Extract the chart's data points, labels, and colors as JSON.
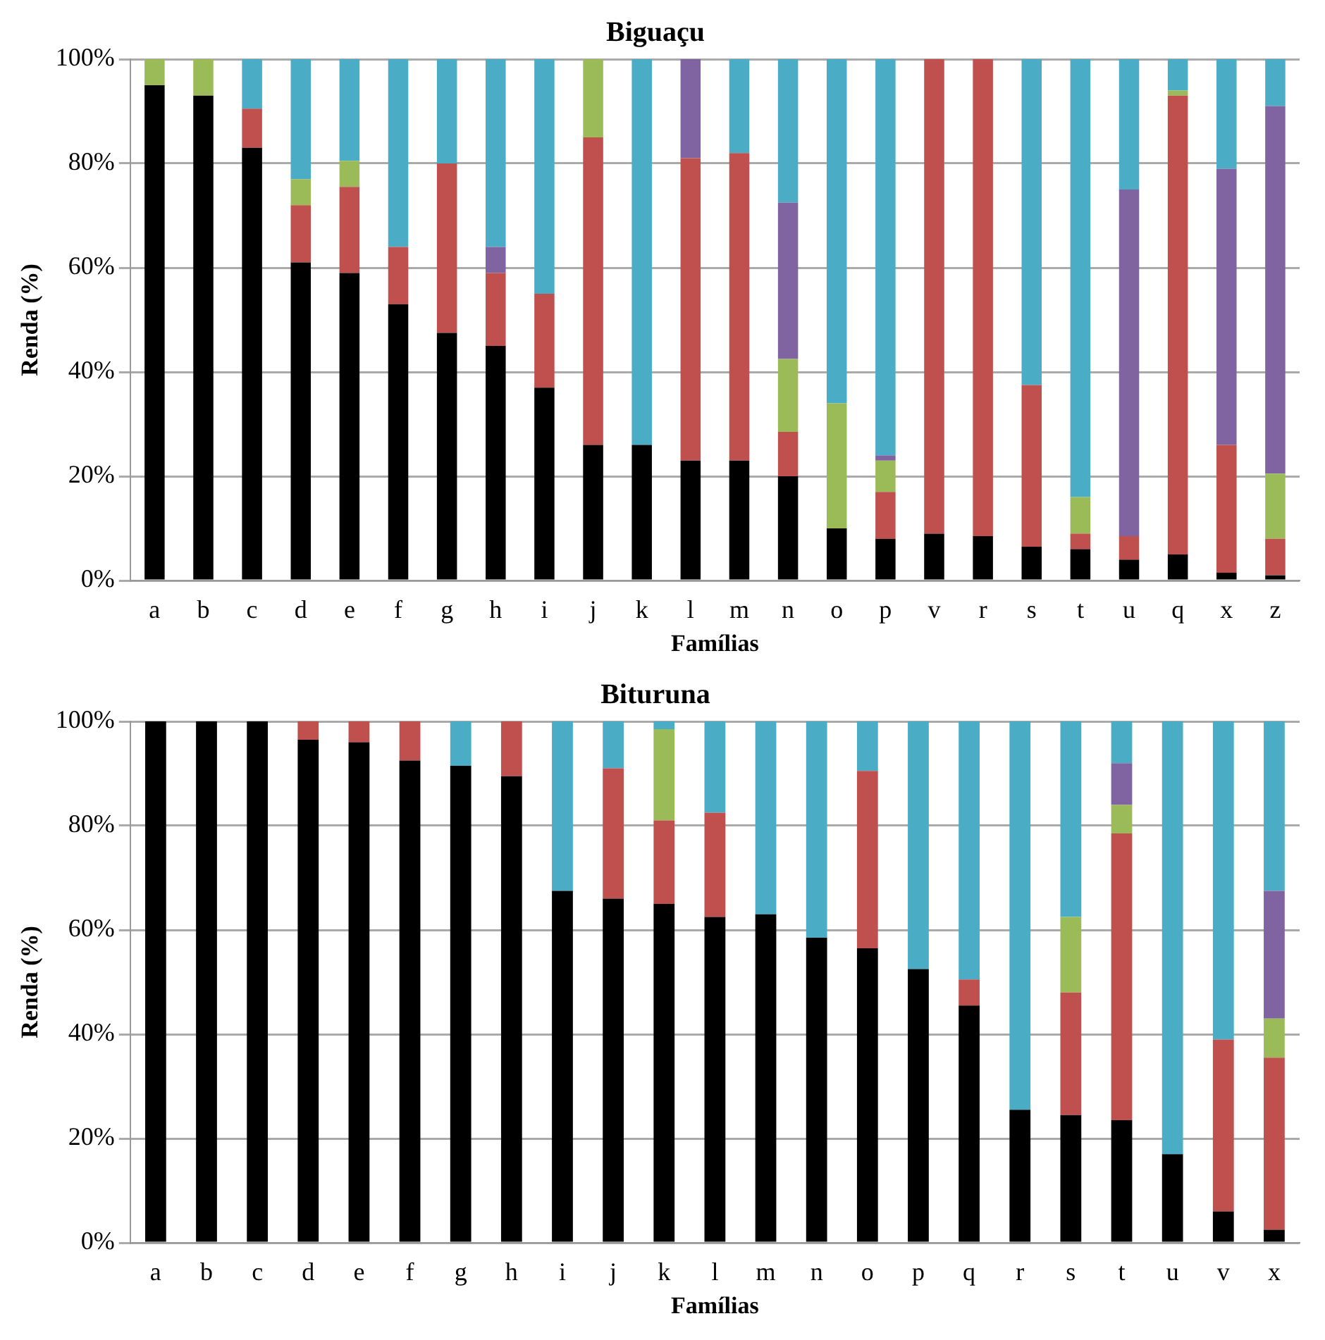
{
  "chart_data": [
    {
      "type": "bar",
      "title": "Biguaçu",
      "xlabel": "Famílias",
      "ylabel": "Renda (%)",
      "stacked": true,
      "grid": "y",
      "legend": false,
      "categories": [
        "a",
        "b",
        "c",
        "d",
        "e",
        "f",
        "g",
        "h",
        "i",
        "j",
        "k",
        "l",
        "m",
        "n",
        "o",
        "p",
        "v",
        "r",
        "s",
        "t",
        "u",
        "q",
        "x",
        "z"
      ],
      "ylim": [
        0,
        100
      ],
      "yticks": [
        {
          "value": 0,
          "label": "0%"
        },
        {
          "value": 20,
          "label": "20%"
        },
        {
          "value": 40,
          "label": "40%"
        },
        {
          "value": 60,
          "label": "60%"
        },
        {
          "value": 80,
          "label": "80%"
        },
        {
          "value": 100,
          "label": "100%"
        }
      ],
      "series": [
        {
          "color": "#000000",
          "values": [
            95,
            93,
            83,
            61,
            59,
            53,
            47.5,
            45,
            37,
            26,
            26,
            23,
            23,
            20,
            10,
            8,
            9,
            8.5,
            6.5,
            6,
            4,
            5,
            1.5,
            1
          ]
        },
        {
          "color": "#c0504d",
          "values": [
            null,
            null,
            7.5,
            11,
            16.5,
            11,
            32.5,
            14,
            18,
            59,
            null,
            58,
            59,
            8.5,
            null,
            9,
            91,
            91.5,
            31,
            3,
            4.5,
            88,
            24.5,
            7
          ]
        },
        {
          "color": "#9bbb59",
          "values": [
            5,
            7,
            null,
            5,
            5,
            null,
            null,
            null,
            null,
            15,
            null,
            null,
            null,
            14,
            24,
            6,
            null,
            null,
            null,
            7,
            null,
            1,
            null,
            12.5
          ]
        },
        {
          "color": "#8064a2",
          "values": [
            null,
            null,
            null,
            null,
            null,
            null,
            null,
            5,
            null,
            null,
            null,
            19,
            null,
            30,
            null,
            1,
            null,
            null,
            null,
            null,
            66.5,
            null,
            53,
            70.5
          ]
        },
        {
          "color": "#4bacc6",
          "values": [
            null,
            null,
            9.5,
            23,
            19.5,
            36,
            20,
            36,
            45,
            null,
            74,
            null,
            18,
            27.5,
            66,
            76,
            null,
            null,
            62.5,
            84,
            25,
            6,
            21,
            9
          ]
        }
      ]
    },
    {
      "type": "bar",
      "title": "Bituruna",
      "xlabel": "Famílias",
      "ylabel": "Renda (%)",
      "stacked": true,
      "grid": "y",
      "legend": false,
      "categories": [
        "a",
        "b",
        "c",
        "d",
        "e",
        "f",
        "g",
        "h",
        "i",
        "j",
        "k",
        "l",
        "m",
        "n",
        "o",
        "p",
        "q",
        "r",
        "s",
        "t",
        "u",
        "v",
        "x"
      ],
      "ylim": [
        0,
        100
      ],
      "yticks": [
        {
          "value": 0,
          "label": "0%"
        },
        {
          "value": 20,
          "label": "20%"
        },
        {
          "value": 40,
          "label": "40%"
        },
        {
          "value": 60,
          "label": "60%"
        },
        {
          "value": 80,
          "label": "80%"
        },
        {
          "value": 100,
          "label": "100%"
        }
      ],
      "series": [
        {
          "color": "#000000",
          "values": [
            100,
            100,
            100,
            96.5,
            96,
            92.5,
            91.5,
            89.5,
            67.5,
            66,
            65,
            62.5,
            63,
            58.5,
            56.5,
            52.5,
            45.5,
            25.5,
            24.5,
            23.5,
            17,
            6,
            2.5
          ]
        },
        {
          "color": "#c0504d",
          "values": [
            null,
            null,
            null,
            3.5,
            4,
            7.5,
            null,
            10.5,
            null,
            25,
            16,
            20,
            null,
            null,
            34,
            null,
            5,
            null,
            23.5,
            55,
            null,
            33,
            33
          ]
        },
        {
          "color": "#9bbb59",
          "values": [
            null,
            null,
            null,
            null,
            null,
            null,
            null,
            null,
            null,
            null,
            17.5,
            null,
            null,
            null,
            null,
            null,
            null,
            null,
            14.5,
            5.5,
            null,
            null,
            7.5
          ]
        },
        {
          "color": "#8064a2",
          "values": [
            null,
            null,
            null,
            null,
            null,
            null,
            null,
            null,
            null,
            null,
            null,
            null,
            null,
            null,
            null,
            null,
            null,
            null,
            null,
            8,
            null,
            null,
            24.5
          ]
        },
        {
          "color": "#4bacc6",
          "values": [
            null,
            null,
            null,
            null,
            null,
            null,
            8.5,
            null,
            32.5,
            9,
            1.5,
            17.5,
            37,
            41.5,
            9.5,
            47.5,
            49.5,
            74.5,
            37.5,
            8,
            83,
            61,
            32.5
          ]
        }
      ]
    }
  ]
}
